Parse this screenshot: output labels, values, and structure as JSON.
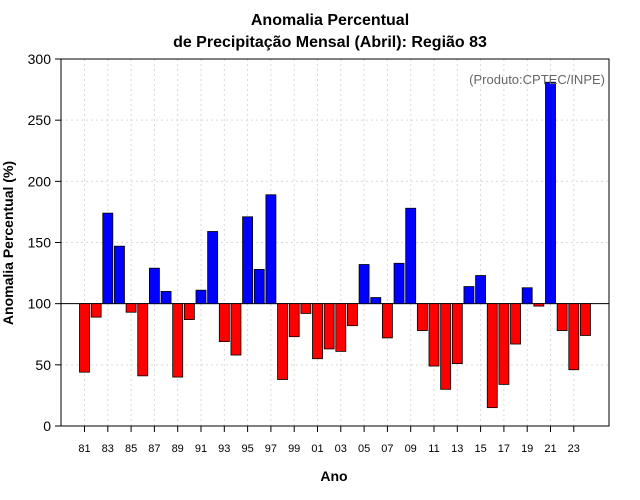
{
  "chart_data": {
    "type": "bar",
    "title": "Anomalia Percentual",
    "subtitle": "de Precipitação Mensal (Abril): Região 83",
    "xlabel": "Ano",
    "ylabel": "Anomalia Percentual (%)",
    "credit": "(Produto:CPTEC/INPE)",
    "baseline": 100,
    "ylim": [
      0,
      300
    ],
    "yticks": [
      "0",
      "50",
      "100",
      "150",
      "200",
      "250",
      "300"
    ],
    "grid": true,
    "colors": {
      "above": "#0000ff",
      "below": "#ff0000",
      "edge": "#000000"
    },
    "categories": [
      "1981",
      "1982",
      "1983",
      "1984",
      "1985",
      "1986",
      "1987",
      "1988",
      "1989",
      "1990",
      "1991",
      "1992",
      "1993",
      "1994",
      "1995",
      "1996",
      "1997",
      "1998",
      "1999",
      "2000",
      "2001",
      "2002",
      "2003",
      "2004",
      "2005",
      "2006",
      "2007",
      "2008",
      "2009",
      "2010",
      "2011",
      "2012",
      "2013",
      "2014",
      "2015",
      "2016",
      "2017",
      "2018",
      "2019",
      "2020",
      "2021",
      "2022",
      "2023",
      "2024"
    ],
    "xtick_labels": [
      "81",
      "83",
      "85",
      "87",
      "89",
      "91",
      "93",
      "95",
      "97",
      "99",
      "01",
      "03",
      "05",
      "07",
      "09",
      "11",
      "13",
      "15",
      "17",
      "19",
      "21",
      "23"
    ],
    "values": [
      44,
      89,
      174,
      147,
      93,
      41,
      129,
      110,
      40,
      87,
      111,
      159,
      69,
      58,
      171,
      128,
      189,
      38,
      73,
      92,
      55,
      63,
      61,
      82,
      132,
      105,
      72,
      133,
      178,
      78,
      49,
      30,
      51,
      114,
      123,
      15,
      34,
      67,
      113,
      98,
      281,
      78,
      46,
      74
    ]
  }
}
